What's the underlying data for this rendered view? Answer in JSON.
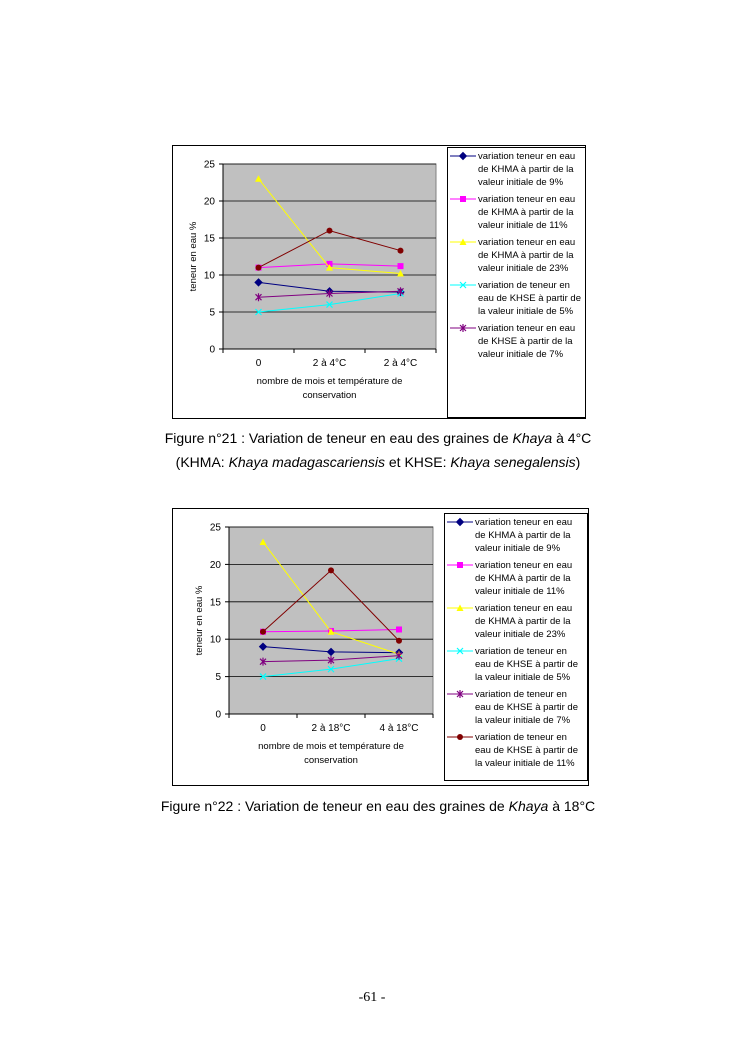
{
  "chart_data": [
    {
      "type": "line",
      "y_label": "teneur en eau %",
      "x_label": "nombre de mois et température de conservation",
      "categories": [
        "0",
        "2 à 4°C",
        "2 à 4°C"
      ],
      "ylim": [
        0,
        25
      ],
      "yticks": [
        0,
        5,
        10,
        15,
        20,
        25
      ],
      "grid": true,
      "legend": "right",
      "series": [
        {
          "name": "variation teneur en eau de KHMA à partir de la valeur initiale de 9%",
          "color": "#000080",
          "marker": "diamond",
          "values": [
            9,
            7.8,
            7.7
          ]
        },
        {
          "name": "variation teneur en eau de KHMA à partir de la valeur initiale de 11%",
          "color": "#ff00ff",
          "marker": "square",
          "values": [
            11,
            11.5,
            11.2
          ]
        },
        {
          "name": "variation teneur en eau de KHMA à partir de la valeur initiale de 23%",
          "color": "#ffff00",
          "marker": "triangle",
          "values": [
            23,
            11,
            10.2
          ]
        },
        {
          "name": "variation de teneur en eau de KHSE à partir de la valeur initiale de 5%",
          "color": "#00ffff",
          "marker": "x",
          "values": [
            5,
            6,
            7.5
          ]
        },
        {
          "name": "variation teneur en eau de KHSE à partir de la valeur initiale de 7%",
          "color": "#800080",
          "marker": "star",
          "values": [
            7,
            7.5,
            7.8
          ]
        },
        {
          "color": "#800000",
          "marker": "circle",
          "values": [
            11,
            16,
            13.3
          ]
        }
      ]
    },
    {
      "type": "line",
      "y_label": "teneur en eau %",
      "x_label": "nombre de mois et température de conservation",
      "categories": [
        "0",
        "2 à 18°C",
        "4 à 18°C"
      ],
      "ylim": [
        0,
        25
      ],
      "yticks": [
        0,
        5,
        10,
        15,
        20,
        25
      ],
      "grid": true,
      "legend": "right",
      "series": [
        {
          "name": "variation teneur en eau de KHMA à partir de la valeur initiale de 9%",
          "color": "#000080",
          "marker": "diamond",
          "values": [
            9,
            8.3,
            8.2
          ]
        },
        {
          "name": "variation teneur en eau de KHMA à partir de la valeur initiale de 11%",
          "color": "#ff00ff",
          "marker": "square",
          "values": [
            11,
            11.1,
            11.3
          ]
        },
        {
          "name": "variation teneur en eau de KHMA à partir de la valeur initiale de 23%",
          "color": "#ffff00",
          "marker": "triangle",
          "values": [
            23,
            11,
            8
          ]
        },
        {
          "name": "variation de teneur en eau de KHSE à partir de la valeur initiale de 5%",
          "color": "#00ffff",
          "marker": "x",
          "values": [
            5,
            6,
            7.4
          ]
        },
        {
          "name": "variation de teneur en eau de KHSE à partir de la valeur initiale de 7%",
          "color": "#800080",
          "marker": "star",
          "values": [
            7,
            7.2,
            7.8
          ]
        },
        {
          "name": "variation de teneur en eau de KHSE à partir de la valeur initiale de 11%",
          "color": "#800000",
          "marker": "circle",
          "values": [
            11,
            19.2,
            9.8
          ]
        }
      ]
    }
  ],
  "captions": [
    {
      "line1": [
        "Figure n°21 : Variation de teneur en eau des graines de ",
        "Khaya",
        " à 4°C"
      ],
      "line2": [
        "(KHMA: ",
        "Khaya madagascariensis",
        " et KHSE: ",
        "Khaya senegalensis",
        ")"
      ]
    },
    {
      "line1": [
        "Figure n°22 : Variation de teneur en eau des graines de ",
        "Khaya",
        " à 18°C"
      ]
    }
  ],
  "page_number": "-61 -"
}
